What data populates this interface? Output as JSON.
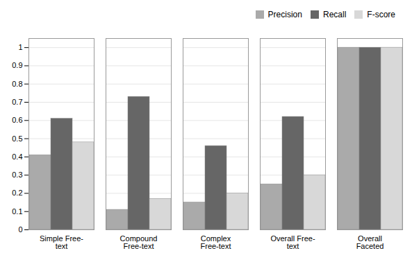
{
  "chart_data": {
    "type": "bar",
    "categories": [
      "Simple Free-\ntext",
      "Compound\nFree-text",
      "Complex\nFree-text",
      "Overall Free-\ntext",
      "Overall\nFaceted"
    ],
    "series": [
      {
        "name": "Precision",
        "color": "#aaaaaa",
        "values": [
          0.41,
          0.11,
          0.15,
          0.25,
          1.0
        ]
      },
      {
        "name": "Recall",
        "color": "#666666",
        "values": [
          0.61,
          0.73,
          0.46,
          0.62,
          1.0
        ]
      },
      {
        "name": "F-score",
        "color": "#d8d8d8",
        "values": [
          0.48,
          0.17,
          0.2,
          0.3,
          1.0
        ]
      }
    ],
    "ylim": [
      0,
      1.05
    ],
    "yticks": [
      0,
      0.1,
      0.2,
      0.3,
      0.4,
      0.5,
      0.6,
      0.7,
      0.8,
      0.9,
      1
    ],
    "grid": true,
    "legend": "upper right"
  }
}
